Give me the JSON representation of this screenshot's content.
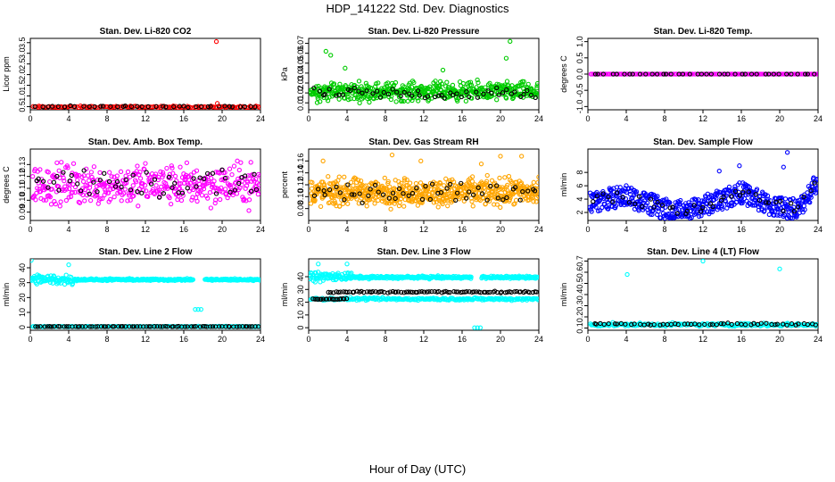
{
  "title": "HDP_141222  Std. Dev. Diagnostics",
  "xlabel": "Hour of Day (UTC)",
  "colors": {
    "co2": "#ff0000",
    "pressure": "#00cc00",
    "temp": "#ff00ff",
    "box": "#ff00ff",
    "rh": "#ffa500",
    "flow": "#0000ff",
    "line": "#00ffff",
    "black": "#000000"
  },
  "chart_data": [
    {
      "type": "scatter",
      "title": "Stan. Dev. Li-820 CO2",
      "ylabel": "Licor ppm",
      "xlim": [
        0,
        24
      ],
      "ylim": [
        0.35,
        3.7
      ],
      "x_ticks": [
        0,
        4,
        8,
        12,
        16,
        20,
        24
      ],
      "x_tick_labels": [
        "0",
        "4",
        "8",
        "12",
        "16",
        "20",
        "24"
      ],
      "y_ticks": [
        0.5,
        1.0,
        1.5,
        2.0,
        2.5,
        3.0,
        3.5
      ],
      "y_tick_labels": [
        "0.5",
        "1.0",
        "1.5",
        "2.0",
        "2.5",
        "3.0",
        "3.5"
      ],
      "series": [
        {
          "color": "#ff0000",
          "band": [
            0.42,
            0.55
          ],
          "count": 140,
          "x_range": [
            0.2,
            24
          ]
        },
        {
          "color": "#000000",
          "band": [
            0.45,
            0.55
          ],
          "count": 40,
          "x_range": [
            0.4,
            24
          ]
        }
      ],
      "points": [
        {
          "x": 19.4,
          "y": 3.55,
          "color": "#ff0000"
        },
        {
          "x": 19.5,
          "y": 0.65,
          "color": "#ff0000"
        }
      ]
    },
    {
      "type": "scatter",
      "title": "Stan. Dev. Li-820 Pressure",
      "ylabel": "kPa",
      "xlim": [
        0,
        24
      ],
      "ylim": [
        0.003,
        0.075
      ],
      "x_ticks": [
        0,
        4,
        8,
        12,
        16,
        20,
        24
      ],
      "x_tick_labels": [
        "0",
        "4",
        "8",
        "12",
        "16",
        "20",
        "24"
      ],
      "y_ticks": [
        0.01,
        0.02,
        0.03,
        0.04,
        0.05,
        0.06,
        0.07
      ],
      "y_tick_labels": [
        "0.01",
        "0.02",
        "0.03",
        "0.04",
        "0.05",
        "0.06",
        "0.07"
      ],
      "series": [
        {
          "color": "#00cc00",
          "band": [
            0.008,
            0.035
          ],
          "count": 500,
          "x_range": [
            0.2,
            24
          ]
        },
        {
          "color": "#000000",
          "band": [
            0.01,
            0.028
          ],
          "count": 55,
          "x_range": [
            0.4,
            24
          ]
        }
      ],
      "points": [
        {
          "x": 1.8,
          "y": 0.062,
          "color": "#00cc00"
        },
        {
          "x": 2.3,
          "y": 0.058,
          "color": "#00cc00"
        },
        {
          "x": 21.0,
          "y": 0.072,
          "color": "#00cc00"
        },
        {
          "x": 20.6,
          "y": 0.055,
          "color": "#00cc00"
        },
        {
          "x": 3.8,
          "y": 0.045,
          "color": "#00cc00"
        },
        {
          "x": 14.0,
          "y": 0.043,
          "color": "#00cc00"
        }
      ]
    },
    {
      "type": "scatter",
      "title": "Stan. Dev. Li-820 Temp.",
      "ylabel": "degrees C",
      "xlim": [
        0,
        24
      ],
      "ylim": [
        -1.1,
        1.1
      ],
      "x_ticks": [
        0,
        4,
        8,
        12,
        16,
        20,
        24
      ],
      "x_tick_labels": [
        "0",
        "4",
        "8",
        "12",
        "16",
        "20",
        "24"
      ],
      "y_ticks": [
        -1.0,
        -0.5,
        0.0,
        0.5,
        1.0
      ],
      "y_tick_labels": [
        "-1.0",
        "-0.5",
        "0.0",
        "0.5",
        "1.0"
      ],
      "series": [
        {
          "color": "#ff00ff",
          "band": [
            0.0,
            0.0
          ],
          "count": 160,
          "x_range": [
            0.2,
            24
          ]
        },
        {
          "color": "#000000",
          "band": [
            0.0,
            0.0
          ],
          "count": 40,
          "x_range": [
            0.4,
            24
          ]
        }
      ],
      "points": []
    },
    {
      "type": "scatter",
      "title": "Stan. Dev. Amb. Box Temp.",
      "ylabel": "degrees C",
      "xlim": [
        0,
        24
      ],
      "ylim": [
        0.083,
        0.143
      ],
      "x_ticks": [
        0,
        4,
        8,
        12,
        16,
        20,
        24
      ],
      "x_tick_labels": [
        "0",
        "4",
        "8",
        "12",
        "16",
        "20",
        "24"
      ],
      "y_ticks": [
        0.09,
        0.1,
        0.11,
        0.12,
        0.13
      ],
      "y_tick_labels": [
        "0.09",
        "0.10",
        "0.11",
        "0.12",
        "0.13"
      ],
      "series": [
        {
          "color": "#ff00ff",
          "band": [
            0.088,
            0.138
          ],
          "count": 420,
          "x_range": [
            0.2,
            24
          ]
        },
        {
          "color": "#000000",
          "band": [
            0.095,
            0.135
          ],
          "count": 55,
          "x_range": [
            0.4,
            24
          ]
        }
      ],
      "points": []
    },
    {
      "type": "scatter",
      "title": "Stan. Dev. Gas Stream RH",
      "ylabel": "percent",
      "xlim": [
        0,
        24
      ],
      "ylim": [
        0.06,
        0.18
      ],
      "x_ticks": [
        0,
        4,
        8,
        12,
        16,
        20,
        24
      ],
      "x_tick_labels": [
        "0",
        "4",
        "8",
        "12",
        "16",
        "20",
        "24"
      ],
      "y_ticks": [
        0.08,
        0.1,
        0.12,
        0.14,
        0.16
      ],
      "y_tick_labels": [
        "0.08",
        "0.10",
        "0.12",
        "0.14",
        "0.16"
      ],
      "series": [
        {
          "color": "#ffa500",
          "band": [
            0.075,
            0.14
          ],
          "count": 650,
          "x_range": [
            0.2,
            24
          ]
        },
        {
          "color": "#000000",
          "band": [
            0.085,
            0.13
          ],
          "count": 55,
          "x_range": [
            0.4,
            24
          ]
        }
      ],
      "points": [
        {
          "x": 1.5,
          "y": 0.16,
          "color": "#ffa500"
        },
        {
          "x": 8.7,
          "y": 0.17,
          "color": "#ffa500"
        },
        {
          "x": 11.7,
          "y": 0.16,
          "color": "#ffa500"
        },
        {
          "x": 20.0,
          "y": 0.168,
          "color": "#ffa500"
        },
        {
          "x": 22.2,
          "y": 0.168,
          "color": "#ffa500"
        },
        {
          "x": 18.0,
          "y": 0.155,
          "color": "#ffa500"
        }
      ]
    },
    {
      "type": "scatter",
      "title": "Stan. Dev. Sample Flow",
      "ylabel": "ml/min",
      "xlim": [
        0,
        24
      ],
      "ylim": [
        0.8,
        11.5
      ],
      "x_ticks": [
        0,
        4,
        8,
        12,
        16,
        20,
        24
      ],
      "x_tick_labels": [
        "0",
        "4",
        "8",
        "12",
        "16",
        "20",
        "24"
      ],
      "y_ticks": [
        2,
        4,
        6,
        8
      ],
      "y_tick_labels": [
        "2",
        "4",
        "6",
        "8"
      ],
      "series": [
        {
          "color": "#0000ff",
          "profile": [
            [
              0,
              3.5
            ],
            [
              4,
              4.5
            ],
            [
              7,
              3
            ],
            [
              9,
              2
            ],
            [
              12,
              3
            ],
            [
              16,
              5
            ],
            [
              19,
              3
            ],
            [
              22,
              2.5
            ],
            [
              24,
              7
            ]
          ],
          "spread": 1.6,
          "count": 560,
          "x_range": [
            0.2,
            24
          ]
        },
        {
          "color": "#000000",
          "profile": [
            [
              0,
              3.5
            ],
            [
              4,
              4.5
            ],
            [
              7,
              3
            ],
            [
              9,
              2
            ],
            [
              12,
              3
            ],
            [
              16,
              5
            ],
            [
              19,
              3
            ],
            [
              22,
              2.5
            ],
            [
              24,
              7
            ]
          ],
          "spread": 1.0,
          "count": 45,
          "x_range": [
            0.4,
            24
          ]
        }
      ],
      "points": [
        {
          "x": 20.8,
          "y": 11.0,
          "color": "#0000ff"
        },
        {
          "x": 15.8,
          "y": 9.0,
          "color": "#0000ff"
        },
        {
          "x": 13.7,
          "y": 8.2,
          "color": "#0000ff"
        },
        {
          "x": 20.4,
          "y": 8.8,
          "color": "#0000ff"
        }
      ]
    },
    {
      "type": "scatter",
      "title": "Stan. Dev. Line 2 Flow",
      "ylabel": "ml/min",
      "xlim": [
        0,
        24
      ],
      "ylim": [
        -2,
        46
      ],
      "x_ticks": [
        0,
        4,
        8,
        12,
        16,
        20,
        24
      ],
      "x_tick_labels": [
        "0",
        "4",
        "8",
        "12",
        "16",
        "20",
        "24"
      ],
      "y_ticks": [
        0,
        10,
        20,
        30,
        40
      ],
      "y_tick_labels": [
        "0",
        "10",
        "20",
        "30",
        "40"
      ],
      "series": [
        {
          "color": "#00ffff",
          "band": [
            27,
            37
          ],
          "count": 80,
          "x_range": [
            0.0,
            4.5
          ]
        },
        {
          "color": "#00ffff",
          "band": [
            31,
            33
          ],
          "count": 200,
          "x_range": [
            4.5,
            17.0
          ]
        },
        {
          "color": "#00ffff",
          "band": [
            31,
            33
          ],
          "count": 90,
          "x_range": [
            18.2,
            24
          ]
        },
        {
          "color": "#00ffff",
          "band": [
            0.2,
            0.8
          ],
          "count": 180,
          "x_range": [
            0.2,
            24
          ]
        },
        {
          "color": "#000000",
          "band": [
            0.3,
            0.7
          ],
          "count": 80,
          "x_range": [
            0.4,
            24
          ]
        }
      ],
      "points": [
        {
          "x": 0.1,
          "y": 45,
          "color": "#00ffff"
        },
        {
          "x": 4.0,
          "y": 42,
          "color": "#00ffff"
        },
        {
          "x": 17.2,
          "y": 12,
          "color": "#00ffff"
        },
        {
          "x": 17.5,
          "y": 12,
          "color": "#00ffff"
        },
        {
          "x": 17.8,
          "y": 12,
          "color": "#00ffff"
        }
      ]
    },
    {
      "type": "scatter",
      "title": "Stan. Dev. Line 3 Flow",
      "ylabel": "ml/min",
      "xlim": [
        0,
        24
      ],
      "ylim": [
        -2,
        54
      ],
      "x_ticks": [
        0,
        4,
        8,
        12,
        16,
        20,
        24
      ],
      "x_tick_labels": [
        "0",
        "4",
        "8",
        "12",
        "16",
        "20",
        "24"
      ],
      "y_ticks": [
        0,
        10,
        20,
        30,
        40
      ],
      "y_tick_labels": [
        "0",
        "10",
        "20",
        "30",
        "40"
      ],
      "series": [
        {
          "color": "#00ffff",
          "band": [
            35,
            45
          ],
          "count": 80,
          "x_range": [
            0.0,
            4.5
          ]
        },
        {
          "color": "#00ffff",
          "band": [
            38,
            41
          ],
          "count": 200,
          "x_range": [
            4.5,
            17.0
          ]
        },
        {
          "color": "#00ffff",
          "band": [
            38,
            41
          ],
          "count": 90,
          "x_range": [
            18.0,
            24
          ]
        },
        {
          "color": "#00ffff",
          "band": [
            21,
            24
          ],
          "count": 240,
          "x_range": [
            0.2,
            24
          ]
        },
        {
          "color": "#000000",
          "band": [
            22,
            23
          ],
          "count": 20,
          "x_range": [
            0.4,
            4.0
          ]
        },
        {
          "color": "#000000",
          "band": [
            27,
            29
          ],
          "count": 90,
          "x_range": [
            2.0,
            24
          ]
        }
      ],
      "points": [
        {
          "x": 1.0,
          "y": 50,
          "color": "#00ffff"
        },
        {
          "x": 4.0,
          "y": 50,
          "color": "#00ffff"
        },
        {
          "x": 17.3,
          "y": 0,
          "color": "#00ffff"
        },
        {
          "x": 17.6,
          "y": 0,
          "color": "#00ffff"
        },
        {
          "x": 17.9,
          "y": 0,
          "color": "#00ffff"
        }
      ]
    },
    {
      "type": "scatter",
      "title": "Stan. Dev. Line 4 (LT) Flow",
      "ylabel": "ml/min",
      "xlim": [
        0,
        24
      ],
      "ylim": [
        0.08,
        0.72
      ],
      "x_ticks": [
        0,
        4,
        8,
        12,
        16,
        20,
        24
      ],
      "x_tick_labels": [
        "0",
        "4",
        "8",
        "12",
        "16",
        "20",
        "24"
      ],
      "y_ticks": [
        0.1,
        0.2,
        0.3,
        0.4,
        0.5,
        0.6,
        0.7
      ],
      "y_tick_labels": [
        "0.1",
        "0.2",
        "0.3",
        "0.4",
        "0.5",
        "0.6",
        "0.7"
      ],
      "series": [
        {
          "color": "#00ffff",
          "band": [
            0.11,
            0.15
          ],
          "count": 230,
          "x_range": [
            0.2,
            24
          ]
        },
        {
          "color": "#000000",
          "band": [
            0.12,
            0.15
          ],
          "count": 55,
          "x_range": [
            0.4,
            24
          ]
        }
      ],
      "points": [
        {
          "x": 4.1,
          "y": 0.58,
          "color": "#00ffff"
        },
        {
          "x": 12.0,
          "y": 0.7,
          "color": "#00ffff"
        },
        {
          "x": 20.0,
          "y": 0.63,
          "color": "#00ffff"
        }
      ]
    }
  ]
}
